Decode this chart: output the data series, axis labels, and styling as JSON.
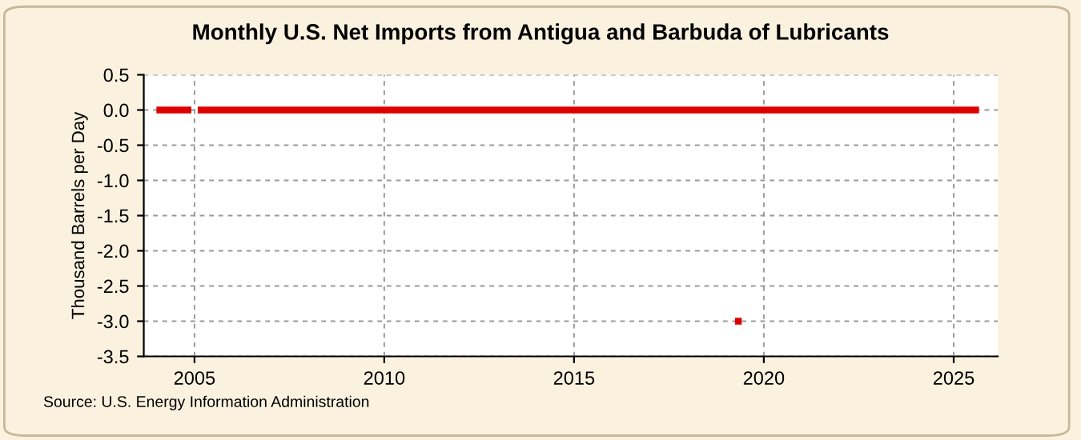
{
  "chart_data": {
    "type": "line",
    "title": "Monthly U.S. Net Imports from Antigua and Barbuda of Lubricants",
    "ylabel": "Thousand Barrels per Day",
    "series": [
      {
        "color": "#dd0000",
        "x": [
          "2004-01",
          "2004-12",
          "2005-01",
          "2005-02",
          "2025-09"
        ],
        "values": [
          0,
          0,
          null,
          0,
          0
        ]
      },
      {
        "type": "scatter",
        "color": "#dd0000",
        "x": [
          "2019-05"
        ],
        "values": [
          -3.0
        ],
        "marker": "square"
      }
    ],
    "xlim": [
      "2003-09",
      "2026-03"
    ],
    "xticks": [
      {
        "value": "2005-01-01",
        "label": "2005"
      },
      {
        "value": "2010-01-01",
        "label": "2010"
      },
      {
        "value": "2015-01-01",
        "label": "2015"
      },
      {
        "value": "2020-01-01",
        "label": "2020"
      },
      {
        "value": "2025-01-01",
        "label": "2025"
      }
    ],
    "ylim": [
      -3.5,
      0.5
    ],
    "yticks": [
      {
        "value": 0.5,
        "label": "0.5"
      },
      {
        "value": 0.0,
        "label": "0.0"
      },
      {
        "value": -0.5,
        "label": "-0.5"
      },
      {
        "value": -1.0,
        "label": "-1.0"
      },
      {
        "value": -1.5,
        "label": "-1.5"
      },
      {
        "value": -2.0,
        "label": "-2.0"
      },
      {
        "value": -2.5,
        "label": "-2.5"
      },
      {
        "value": -3.0,
        "label": "-3.0"
      },
      {
        "value": -3.5,
        "label": "-3.5"
      }
    ],
    "grid": true,
    "annotations": [
      "Source: U.S. Energy Information Administration"
    ]
  }
}
